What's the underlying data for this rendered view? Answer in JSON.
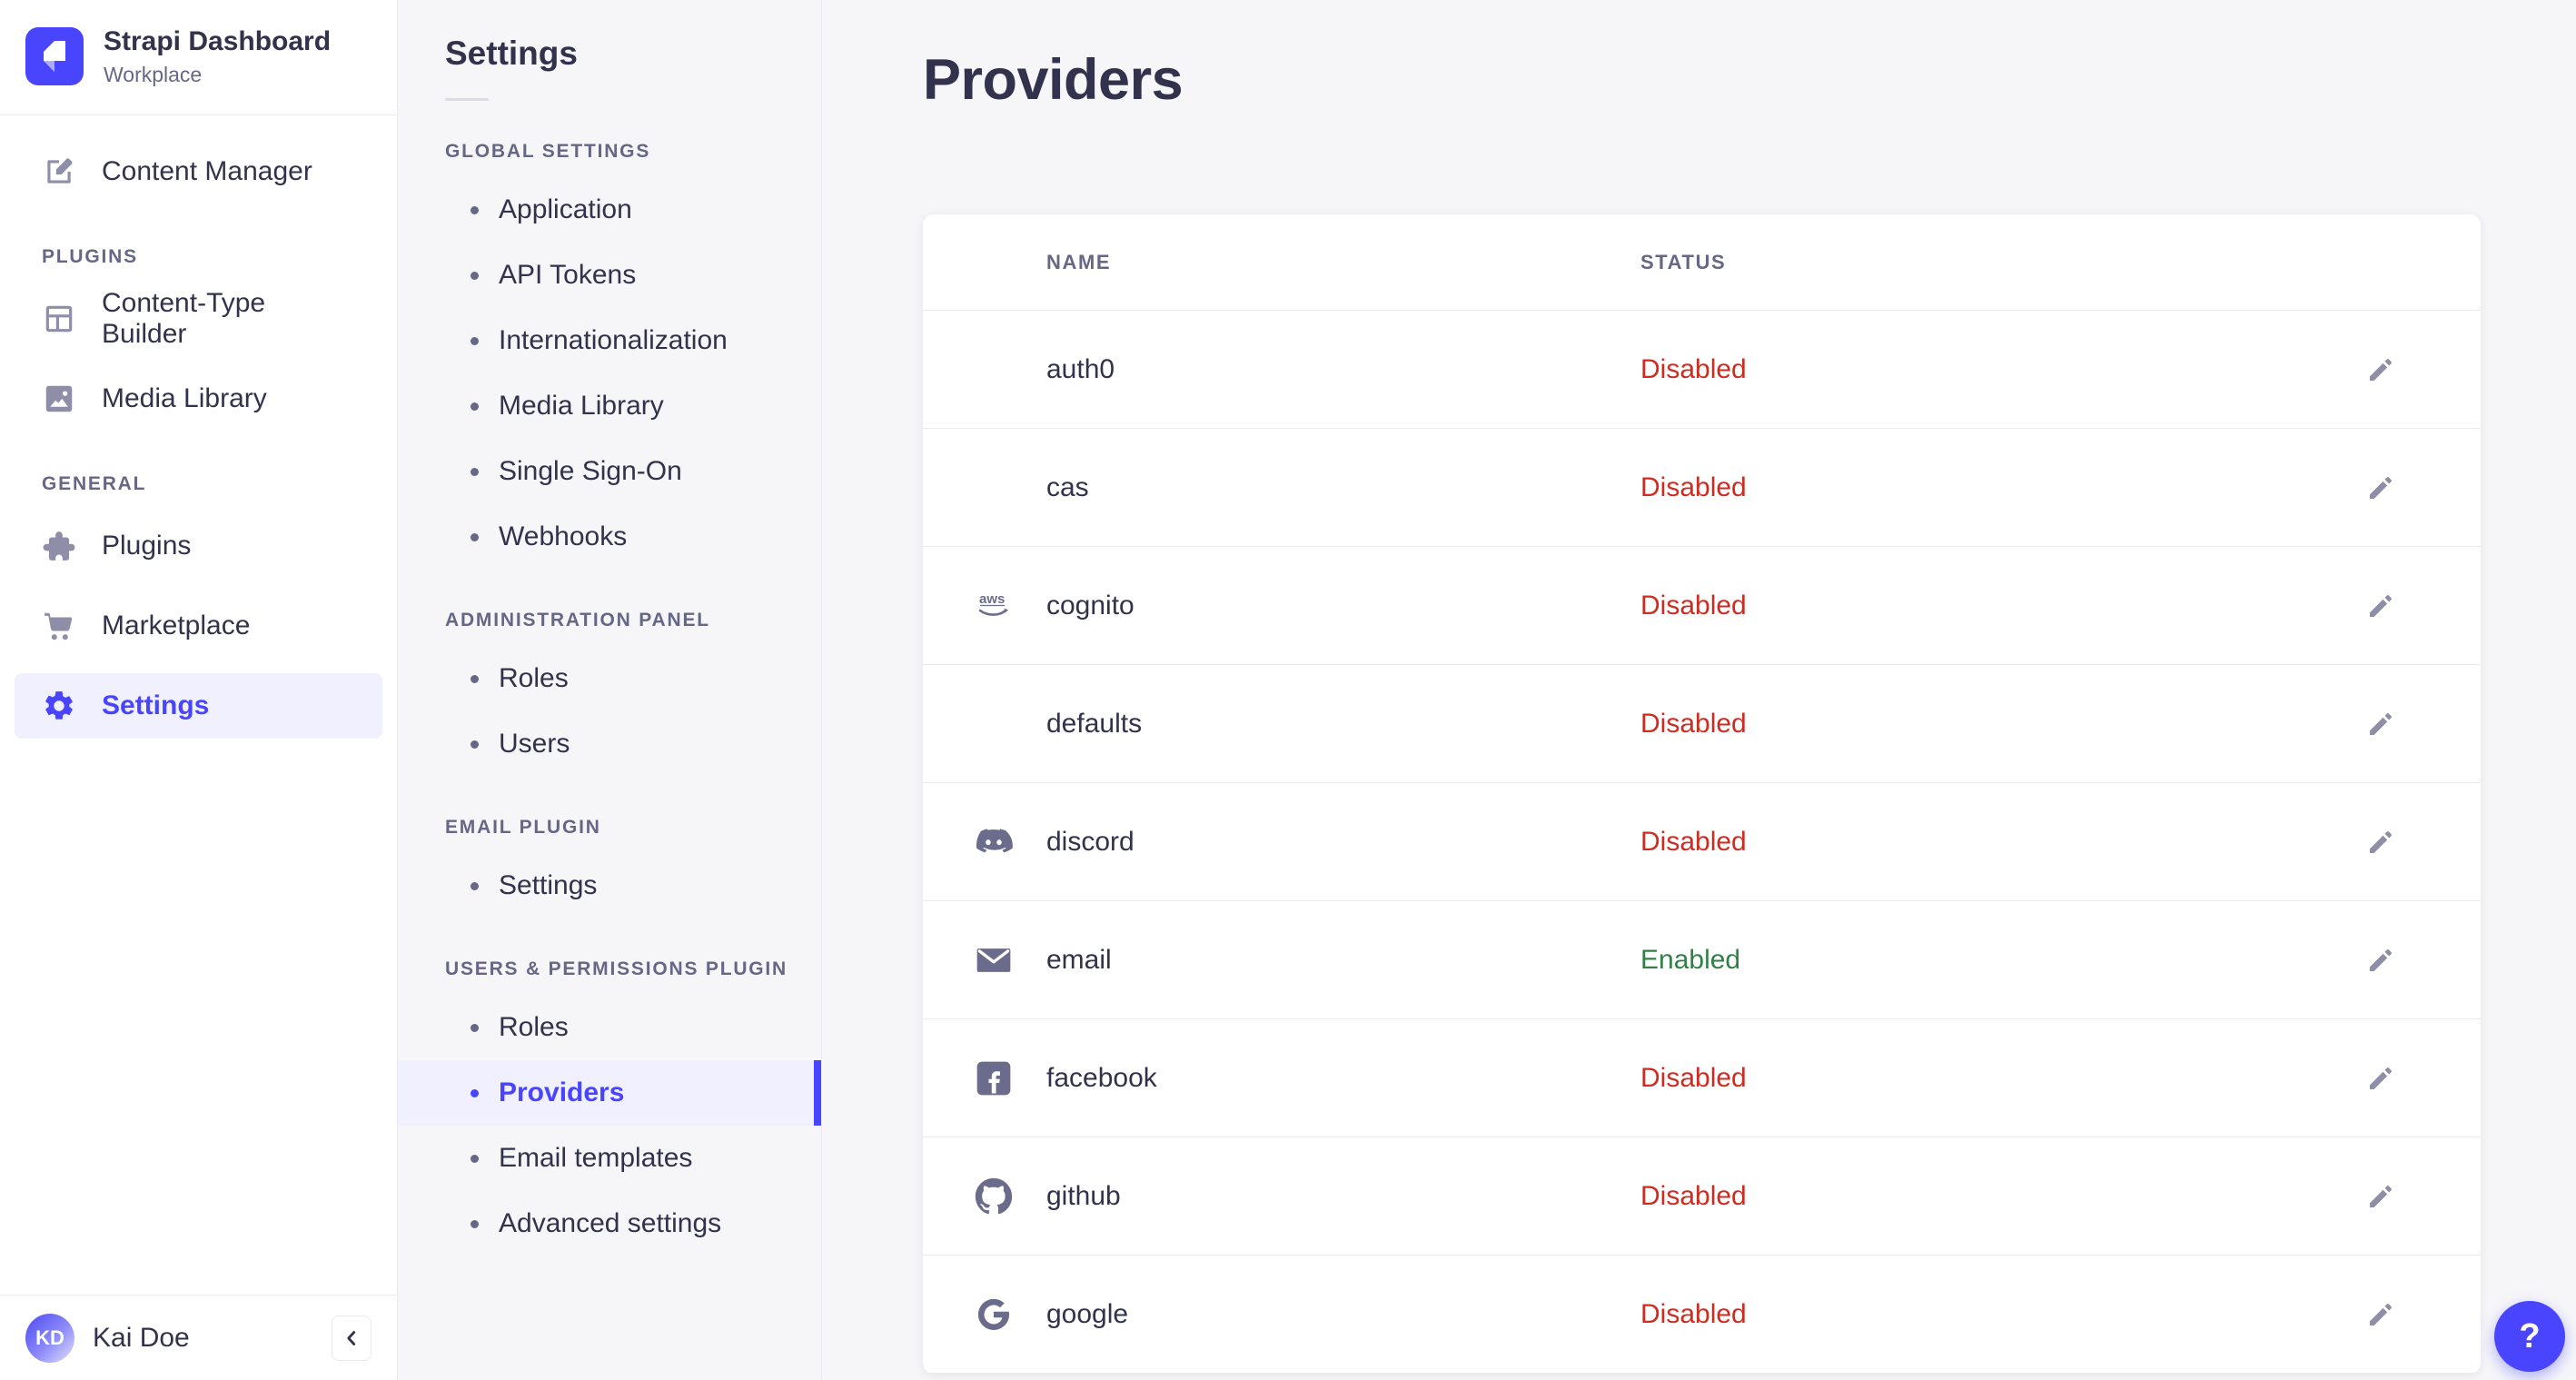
{
  "brand": {
    "title": "Strapi Dashboard",
    "subtitle": "Workplace"
  },
  "sidebar": {
    "sections": [
      {
        "label": null,
        "items": [
          {
            "label": "Content Manager",
            "icon": "content-manager-icon",
            "active": false
          }
        ]
      },
      {
        "label": "PLUGINS",
        "items": [
          {
            "label": "Content-Type Builder",
            "icon": "content-type-builder-icon",
            "active": false
          },
          {
            "label": "Media Library",
            "icon": "media-library-icon",
            "active": false
          }
        ]
      },
      {
        "label": "GENERAL",
        "items": [
          {
            "label": "Plugins",
            "icon": "plugins-icon",
            "active": false
          },
          {
            "label": "Marketplace",
            "icon": "marketplace-icon",
            "active": false
          },
          {
            "label": "Settings",
            "icon": "settings-gear-icon",
            "active": true
          }
        ]
      }
    ],
    "user": {
      "initials": "KD",
      "name": "Kai Doe"
    }
  },
  "subnav": {
    "title": "Settings",
    "sections": [
      {
        "label": "GLOBAL SETTINGS",
        "items": [
          {
            "label": "Application"
          },
          {
            "label": "API Tokens"
          },
          {
            "label": "Internationalization"
          },
          {
            "label": "Media Library"
          },
          {
            "label": "Single Sign-On"
          },
          {
            "label": "Webhooks"
          }
        ]
      },
      {
        "label": "ADMINISTRATION PANEL",
        "items": [
          {
            "label": "Roles"
          },
          {
            "label": "Users"
          }
        ]
      },
      {
        "label": "EMAIL PLUGIN",
        "items": [
          {
            "label": "Settings"
          }
        ]
      },
      {
        "label": "USERS & PERMISSIONS PLUGIN",
        "items": [
          {
            "label": "Roles"
          },
          {
            "label": "Providers",
            "active": true
          },
          {
            "label": "Email templates"
          },
          {
            "label": "Advanced settings"
          }
        ]
      }
    ]
  },
  "main": {
    "title": "Providers",
    "table": {
      "columns": [
        "NAME",
        "STATUS"
      ],
      "rows": [
        {
          "name": "auth0",
          "icon": null,
          "status": "Disabled"
        },
        {
          "name": "cas",
          "icon": null,
          "status": "Disabled"
        },
        {
          "name": "cognito",
          "icon": "aws-icon",
          "status": "Disabled"
        },
        {
          "name": "defaults",
          "icon": null,
          "status": "Disabled"
        },
        {
          "name": "discord",
          "icon": "discord-icon",
          "status": "Disabled"
        },
        {
          "name": "email",
          "icon": "email-icon",
          "status": "Enabled"
        },
        {
          "name": "facebook",
          "icon": "facebook-icon",
          "status": "Disabled"
        },
        {
          "name": "github",
          "icon": "github-icon",
          "status": "Disabled"
        },
        {
          "name": "google",
          "icon": "google-icon",
          "status": "Disabled"
        }
      ]
    }
  },
  "help": {
    "label": "?"
  },
  "colors": {
    "accent": "#4945ff",
    "accent_bg": "#f0f0ff",
    "background": "#f6f6f9",
    "surface": "#ffffff",
    "border": "#eaeaef",
    "text": "#32324d",
    "muted": "#666687",
    "icon": "#8e8ea9",
    "enabled": "#328048",
    "disabled": "#d02b20"
  }
}
